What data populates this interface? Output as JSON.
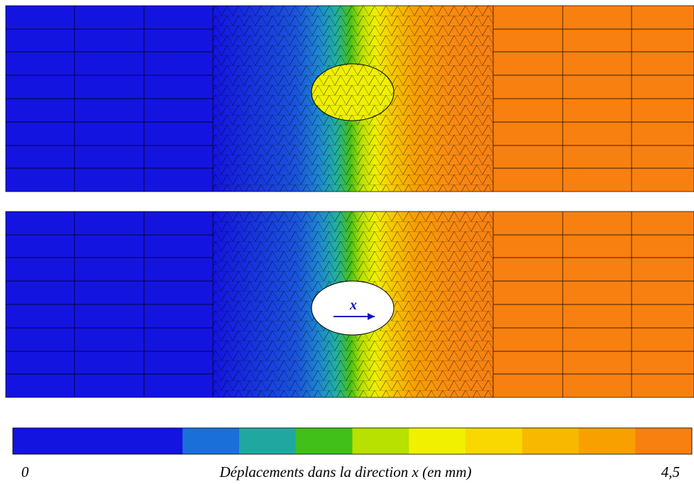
{
  "panels": {
    "bottom": {
      "arrow_label": "x"
    }
  },
  "colorbar": {
    "min_label": "0",
    "max_label": "4,5",
    "caption": "Déplacements dans la direction x (en mm)"
  }
}
